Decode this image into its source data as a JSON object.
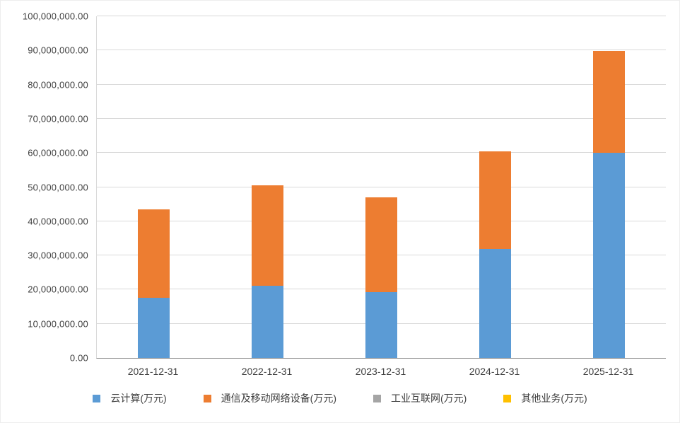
{
  "chart": {
    "title": ""
  },
  "chart_data": {
    "type": "bar",
    "stacked": true,
    "title": "",
    "xlabel": "",
    "ylabel": "",
    "ylim": [
      0,
      100000000
    ],
    "y_tick_step": 10000000,
    "y_tick_format": "#,##0.00",
    "grid": true,
    "legend_position": "bottom",
    "categories": [
      "2021-12-31",
      "2022-12-31",
      "2023-12-31",
      "2024-12-31",
      "2025-12-31"
    ],
    "series": [
      {
        "name": "云计算(万元)",
        "color": "#5B9BD5",
        "values": [
          17600000,
          21200000,
          19300000,
          31900000,
          60100000
        ]
      },
      {
        "name": "通信及移动网络设备(万元)",
        "color": "#ED7D31",
        "values": [
          25800000,
          29400000,
          27800000,
          28600000,
          29700000
        ]
      },
      {
        "name": "工业互联网(万元)",
        "color": "#A5A5A5",
        "values": [
          0,
          0,
          0,
          0,
          0
        ]
      },
      {
        "name": "其他业务(万元)",
        "color": "#FFC000",
        "values": [
          0,
          0,
          0,
          0,
          0
        ]
      }
    ],
    "colors": {
      "gridline": "#d9d9d9",
      "axis_line": "#8c8c8c",
      "tick_text": "#404040"
    }
  }
}
